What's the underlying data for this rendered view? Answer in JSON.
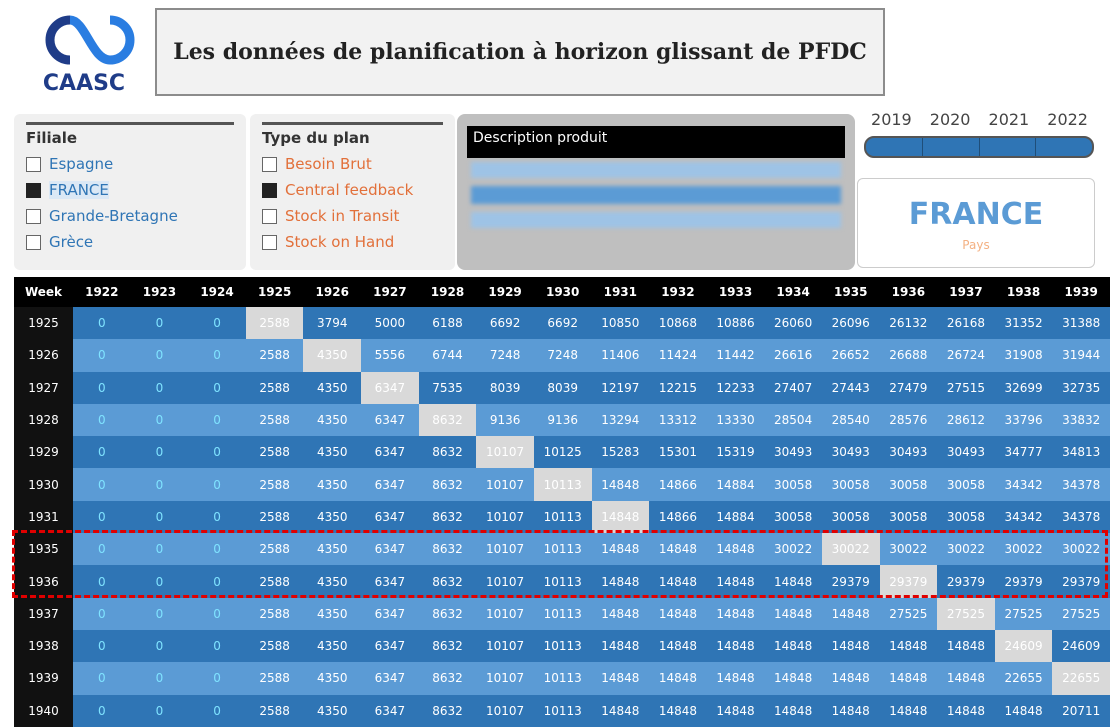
{
  "header": {
    "logo": "CAASC",
    "title": "Les données de planification à horizon glissant de PFDC"
  },
  "filiale": {
    "title": "Filiale",
    "items": [
      {
        "label": "Espagne",
        "selected": false
      },
      {
        "label": "FRANCE",
        "selected": true
      },
      {
        "label": "Grande-Bretagne",
        "selected": false
      },
      {
        "label": "Grèce",
        "selected": false
      }
    ]
  },
  "type_plan": {
    "title": "Type du plan",
    "items": [
      {
        "label": "Besoin Brut",
        "selected": false
      },
      {
        "label": "Central feedback",
        "selected": true
      },
      {
        "label": "Stock in Transit",
        "selected": false
      },
      {
        "label": "Stock on Hand",
        "selected": false
      }
    ]
  },
  "description": {
    "title": "Description produit"
  },
  "years": [
    "2019",
    "2020",
    "2021",
    "2022"
  ],
  "card": {
    "value": "FRANCE",
    "label": "Pays"
  },
  "table": {
    "header": [
      "Week",
      "1922",
      "1923",
      "1924",
      "1925",
      "1926",
      "1927",
      "1928",
      "1929",
      "1930",
      "1931",
      "1932",
      "1933",
      "1934",
      "1935",
      "1936",
      "1937",
      "1938",
      "1939"
    ],
    "rows": [
      {
        "week": "1925",
        "values": [
          0,
          0,
          0,
          2588,
          3794,
          5000,
          6188,
          6692,
          6692,
          10850,
          10868,
          10886,
          26060,
          26096,
          26132,
          26168,
          31352,
          31388
        ]
      },
      {
        "week": "1926",
        "values": [
          0,
          0,
          0,
          2588,
          4350,
          5556,
          6744,
          7248,
          7248,
          11406,
          11424,
          11442,
          26616,
          26652,
          26688,
          26724,
          31908,
          31944
        ]
      },
      {
        "week": "1927",
        "values": [
          0,
          0,
          0,
          2588,
          4350,
          6347,
          7535,
          8039,
          8039,
          12197,
          12215,
          12233,
          27407,
          27443,
          27479,
          27515,
          32699,
          32735
        ]
      },
      {
        "week": "1928",
        "values": [
          0,
          0,
          0,
          2588,
          4350,
          6347,
          8632,
          9136,
          9136,
          13294,
          13312,
          13330,
          28504,
          28540,
          28576,
          28612,
          33796,
          33832
        ]
      },
      {
        "week": "1929",
        "values": [
          0,
          0,
          0,
          2588,
          4350,
          6347,
          8632,
          10107,
          10125,
          15283,
          15301,
          15319,
          30493,
          30493,
          30493,
          30493,
          34777,
          34813
        ]
      },
      {
        "week": "1930",
        "values": [
          0,
          0,
          0,
          2588,
          4350,
          6347,
          8632,
          10107,
          10113,
          14848,
          14866,
          14884,
          30058,
          30058,
          30058,
          30058,
          34342,
          34378
        ]
      },
      {
        "week": "1931",
        "values": [
          0,
          0,
          0,
          2588,
          4350,
          6347,
          8632,
          10107,
          10113,
          14848,
          14866,
          14884,
          30058,
          30058,
          30058,
          30058,
          34342,
          34378
        ]
      },
      {
        "week": "1935",
        "values": [
          0,
          0,
          0,
          2588,
          4350,
          6347,
          8632,
          10107,
          10113,
          14848,
          14848,
          14848,
          30022,
          30022,
          30022,
          30022,
          30022,
          30022
        ]
      },
      {
        "week": "1936",
        "values": [
          0,
          0,
          0,
          2588,
          4350,
          6347,
          8632,
          10107,
          10113,
          14848,
          14848,
          14848,
          14848,
          29379,
          29379,
          29379,
          29379,
          29379
        ]
      },
      {
        "week": "1937",
        "values": [
          0,
          0,
          0,
          2588,
          4350,
          6347,
          8632,
          10107,
          10113,
          14848,
          14848,
          14848,
          14848,
          14848,
          27525,
          27525,
          27525,
          27525
        ]
      },
      {
        "week": "1938",
        "values": [
          0,
          0,
          0,
          2588,
          4350,
          6347,
          8632,
          10107,
          10113,
          14848,
          14848,
          14848,
          14848,
          14848,
          14848,
          14848,
          24609,
          24609
        ]
      },
      {
        "week": "1939",
        "values": [
          0,
          0,
          0,
          2588,
          4350,
          6347,
          8632,
          10107,
          10113,
          14848,
          14848,
          14848,
          14848,
          14848,
          14848,
          14848,
          22655,
          22655
        ]
      },
      {
        "week": "1940",
        "values": [
          0,
          0,
          0,
          2588,
          4350,
          6347,
          8632,
          10107,
          10113,
          14848,
          14848,
          14848,
          14848,
          14848,
          14848,
          14848,
          14848,
          20711
        ]
      }
    ]
  }
}
